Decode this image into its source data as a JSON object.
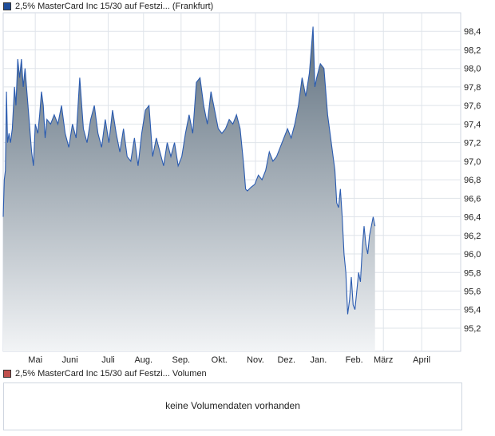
{
  "price_legend": {
    "label": "2,5% MasterCard Inc 15/30 auf Festzi... (Frankfurt)",
    "color": "#1f4e9a"
  },
  "volume_legend": {
    "label": "2,5% MasterCard Inc 15/30 auf Festzi... Volumen",
    "color": "#c0504d"
  },
  "volume_panel": {
    "message": "keine Volumendaten vorhanden"
  },
  "chart_data": {
    "type": "area",
    "title": "2,5% MasterCard Inc 15/30 auf Festzi... (Frankfurt)",
    "xlabel": "",
    "ylabel": "",
    "x_ticks": [
      "Mai",
      "Juni",
      "Juli",
      "Aug.",
      "Sep.",
      "Okt.",
      "Nov.",
      "Dez.",
      "Jan.",
      "Feb.",
      "März",
      "April"
    ],
    "y_ticks": [
      "95,2",
      "95,4",
      "95,6",
      "95,8",
      "96,0",
      "96,2",
      "96,4",
      "96,6",
      "96,8",
      "97,0",
      "97,2",
      "97,4",
      "97,6",
      "97,8",
      "98,0",
      "98,2",
      "98,4"
    ],
    "ylim": [
      94.95,
      98.6
    ],
    "x_range": [
      0,
      12.55
    ],
    "grid": true,
    "line_color": "#2a5bb0",
    "fill_top_color": "#5e6f7e",
    "fill_bottom_color": "#f2f4f6",
    "series": [
      {
        "values": [
          [
            0.0,
            96.4
          ],
          [
            0.03,
            96.8
          ],
          [
            0.06,
            96.9
          ],
          [
            0.09,
            97.75
          ],
          [
            0.12,
            97.2
          ],
          [
            0.16,
            97.3
          ],
          [
            0.2,
            97.2
          ],
          [
            0.25,
            97.35
          ],
          [
            0.31,
            97.8
          ],
          [
            0.35,
            97.6
          ],
          [
            0.4,
            98.1
          ],
          [
            0.45,
            97.9
          ],
          [
            0.5,
            98.1
          ],
          [
            0.55,
            97.8
          ],
          [
            0.6,
            98.0
          ],
          [
            0.66,
            97.7
          ],
          [
            0.72,
            97.4
          ],
          [
            0.78,
            97.1
          ],
          [
            0.83,
            96.95
          ],
          [
            0.88,
            97.4
          ],
          [
            0.95,
            97.3
          ],
          [
            1.0,
            97.5
          ],
          [
            1.05,
            97.75
          ],
          [
            1.1,
            97.6
          ],
          [
            1.15,
            97.25
          ],
          [
            1.2,
            97.45
          ],
          [
            1.3,
            97.4
          ],
          [
            1.4,
            97.5
          ],
          [
            1.5,
            97.4
          ],
          [
            1.6,
            97.6
          ],
          [
            1.7,
            97.3
          ],
          [
            1.8,
            97.15
          ],
          [
            1.9,
            97.4
          ],
          [
            2.0,
            97.25
          ],
          [
            2.1,
            97.9
          ],
          [
            2.2,
            97.35
          ],
          [
            2.3,
            97.2
          ],
          [
            2.4,
            97.45
          ],
          [
            2.5,
            97.6
          ],
          [
            2.6,
            97.3
          ],
          [
            2.7,
            97.15
          ],
          [
            2.8,
            97.45
          ],
          [
            2.9,
            97.2
          ],
          [
            3.0,
            97.55
          ],
          [
            3.1,
            97.3
          ],
          [
            3.2,
            97.1
          ],
          [
            3.3,
            97.35
          ],
          [
            3.4,
            97.05
          ],
          [
            3.5,
            97.0
          ],
          [
            3.6,
            97.25
          ],
          [
            3.7,
            96.95
          ],
          [
            3.8,
            97.3
          ],
          [
            3.9,
            97.55
          ],
          [
            4.0,
            97.6
          ],
          [
            4.1,
            97.05
          ],
          [
            4.2,
            97.25
          ],
          [
            4.3,
            97.1
          ],
          [
            4.4,
            96.95
          ],
          [
            4.5,
            97.2
          ],
          [
            4.6,
            97.05
          ],
          [
            4.7,
            97.2
          ],
          [
            4.8,
            96.95
          ],
          [
            4.9,
            97.05
          ],
          [
            5.0,
            97.3
          ],
          [
            5.1,
            97.5
          ],
          [
            5.2,
            97.3
          ],
          [
            5.3,
            97.85
          ],
          [
            5.4,
            97.9
          ],
          [
            5.5,
            97.6
          ],
          [
            5.6,
            97.4
          ],
          [
            5.7,
            97.75
          ],
          [
            5.8,
            97.55
          ],
          [
            5.9,
            97.35
          ],
          [
            6.0,
            97.3
          ],
          [
            6.1,
            97.35
          ],
          [
            6.2,
            97.45
          ],
          [
            6.3,
            97.4
          ],
          [
            6.4,
            97.5
          ],
          [
            6.5,
            97.35
          ],
          [
            6.6,
            96.95
          ],
          [
            6.65,
            96.7
          ],
          [
            6.7,
            96.68
          ],
          [
            6.8,
            96.72
          ],
          [
            6.9,
            96.75
          ],
          [
            7.0,
            96.85
          ],
          [
            7.1,
            96.8
          ],
          [
            7.2,
            96.9
          ],
          [
            7.3,
            97.1
          ],
          [
            7.4,
            97.0
          ],
          [
            7.5,
            97.05
          ],
          [
            7.6,
            97.15
          ],
          [
            7.7,
            97.25
          ],
          [
            7.8,
            97.35
          ],
          [
            7.9,
            97.25
          ],
          [
            8.0,
            97.4
          ],
          [
            8.1,
            97.6
          ],
          [
            8.2,
            97.9
          ],
          [
            8.3,
            97.7
          ],
          [
            8.4,
            97.95
          ],
          [
            8.5,
            98.45
          ],
          [
            8.55,
            97.8
          ],
          [
            8.6,
            97.9
          ],
          [
            8.7,
            98.05
          ],
          [
            8.8,
            98.0
          ],
          [
            8.9,
            97.5
          ],
          [
            9.0,
            97.2
          ],
          [
            9.1,
            96.9
          ],
          [
            9.15,
            96.55
          ],
          [
            9.2,
            96.5
          ],
          [
            9.25,
            96.7
          ],
          [
            9.3,
            96.4
          ],
          [
            9.35,
            96.0
          ],
          [
            9.4,
            95.8
          ],
          [
            9.45,
            95.35
          ],
          [
            9.5,
            95.5
          ],
          [
            9.55,
            95.75
          ],
          [
            9.6,
            95.45
          ],
          [
            9.65,
            95.4
          ],
          [
            9.7,
            95.6
          ],
          [
            9.75,
            95.8
          ],
          [
            9.8,
            95.7
          ],
          [
            9.85,
            96.05
          ],
          [
            9.9,
            96.3
          ],
          [
            9.95,
            96.1
          ],
          [
            10.0,
            96.0
          ],
          [
            10.05,
            96.2
          ],
          [
            10.1,
            96.3
          ],
          [
            10.15,
            96.4
          ],
          [
            10.2,
            96.3
          ]
        ],
        "month_positions": [
          0.88,
          1.83,
          2.88,
          3.85,
          4.88,
          5.93,
          6.92,
          7.77,
          8.65,
          9.63,
          10.43,
          11.48
        ]
      }
    ]
  }
}
